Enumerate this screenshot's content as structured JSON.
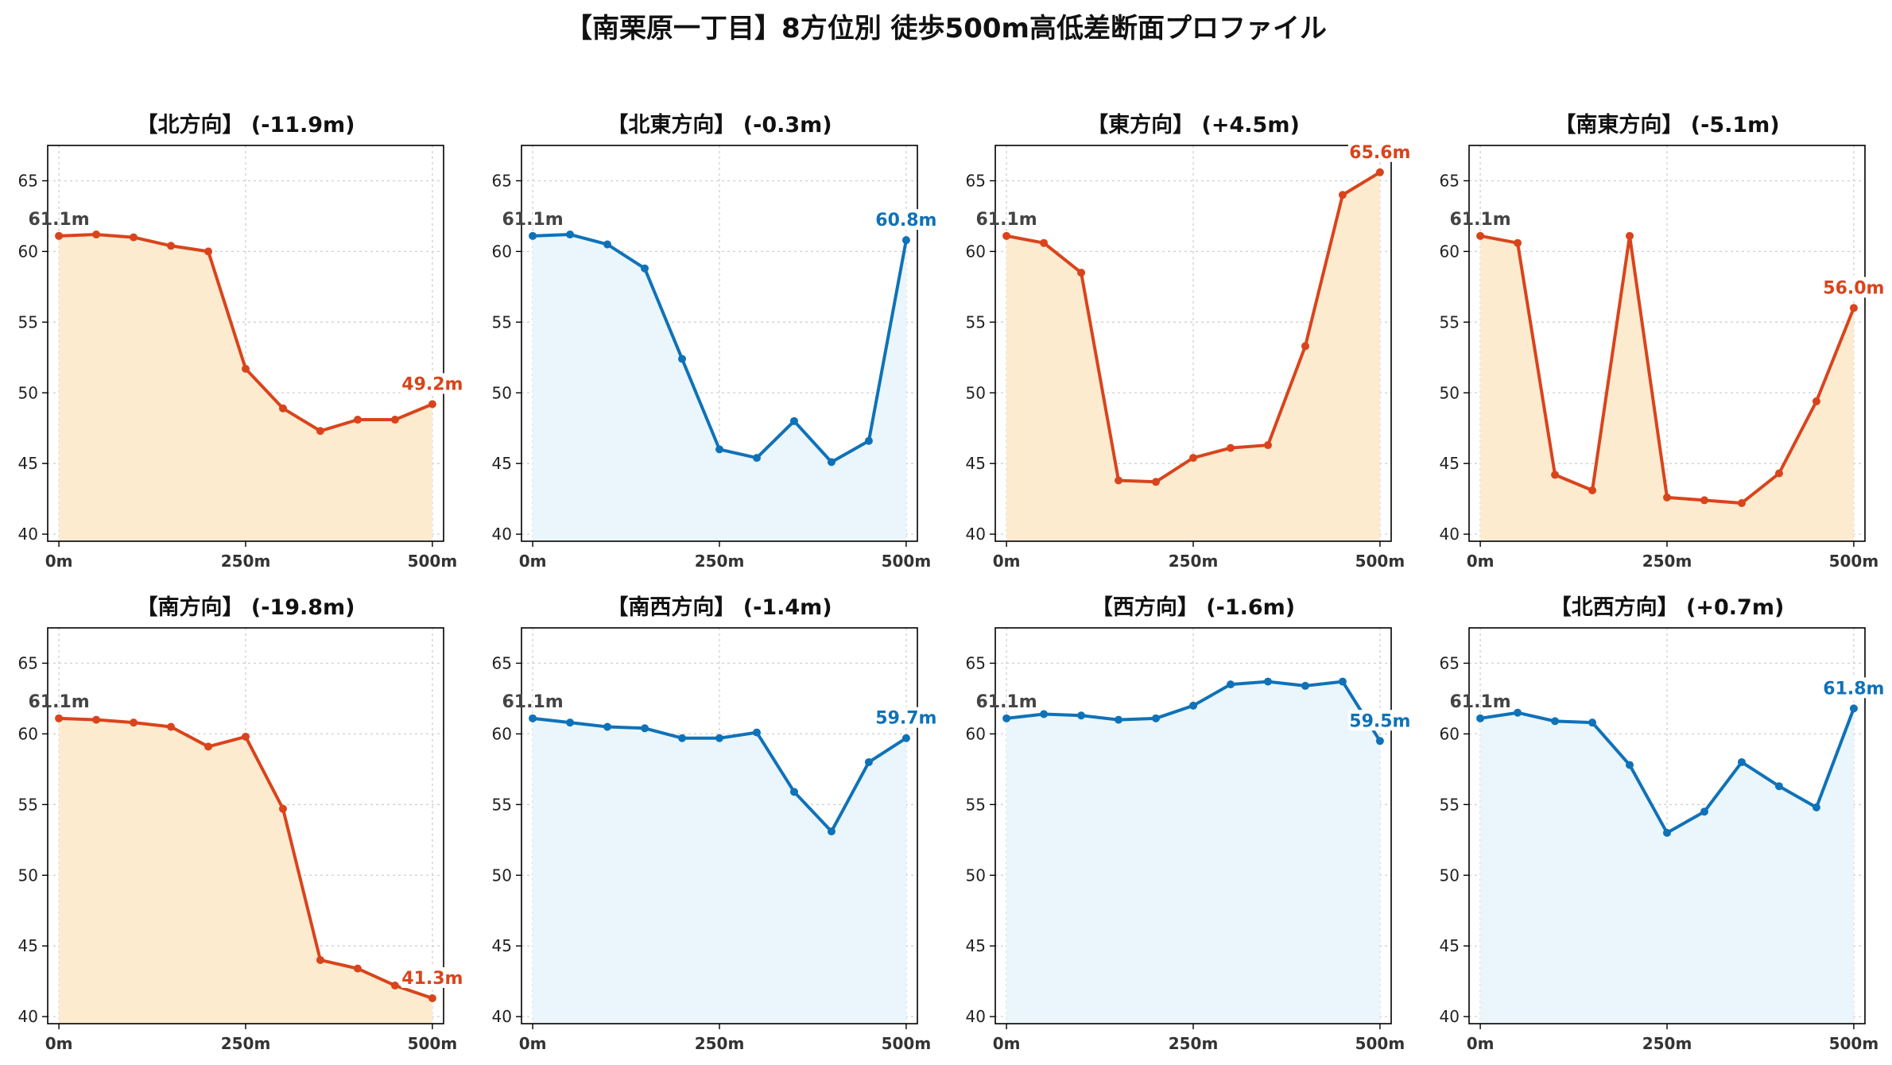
{
  "title": "【南栗原一丁目】8方位別 徒歩500m高低差断面プロファイル",
  "colors": {
    "up": "#d9441c",
    "down": "#0f72b8",
    "up_fill": "#fdebd0",
    "down_fill": "#eaf6fb",
    "start_label": "#444444"
  },
  "chart_data": [
    {
      "type": "area",
      "title": "【北方向】 (-11.9m)",
      "series": "up",
      "x": [
        0,
        50,
        100,
        150,
        200,
        250,
        300,
        350,
        400,
        450,
        500
      ],
      "y": [
        61.1,
        61.2,
        61.0,
        60.4,
        60.0,
        51.7,
        48.9,
        47.3,
        48.1,
        48.1,
        49.2
      ],
      "start_label": "61.1m",
      "end_label": "49.2m",
      "xticks": [
        "0m",
        "250m",
        "500m"
      ],
      "yticks": [
        40,
        45,
        50,
        55,
        60,
        65
      ],
      "ylim": [
        39.5,
        67.5
      ],
      "xlim": [
        -15,
        515
      ],
      "grid": true
    },
    {
      "type": "area",
      "title": "【北東方向】 (-0.3m)",
      "series": "down",
      "x": [
        0,
        50,
        100,
        150,
        200,
        250,
        300,
        350,
        400,
        450,
        500
      ],
      "y": [
        61.1,
        61.2,
        60.5,
        58.8,
        52.4,
        46.0,
        45.4,
        48.0,
        45.1,
        46.6,
        60.8
      ],
      "start_label": "61.1m",
      "end_label": "60.8m",
      "xticks": [
        "0m",
        "250m",
        "500m"
      ],
      "yticks": [
        40,
        45,
        50,
        55,
        60,
        65
      ],
      "ylim": [
        39.5,
        67.5
      ],
      "xlim": [
        -15,
        515
      ],
      "grid": true
    },
    {
      "type": "area",
      "title": "【東方向】 (+4.5m)",
      "series": "up",
      "x": [
        0,
        50,
        100,
        150,
        200,
        250,
        300,
        350,
        400,
        450,
        500
      ],
      "y": [
        61.1,
        60.6,
        58.5,
        43.8,
        43.7,
        45.4,
        46.1,
        46.3,
        53.3,
        64.0,
        65.6
      ],
      "start_label": "61.1m",
      "end_label": "65.6m",
      "xticks": [
        "0m",
        "250m",
        "500m"
      ],
      "yticks": [
        40,
        45,
        50,
        55,
        60,
        65
      ],
      "ylim": [
        39.5,
        67.5
      ],
      "xlim": [
        -15,
        515
      ],
      "grid": true
    },
    {
      "type": "area",
      "title": "【南東方向】 (-5.1m)",
      "series": "up",
      "x": [
        0,
        50,
        100,
        150,
        200,
        250,
        300,
        350,
        400,
        450,
        500
      ],
      "y": [
        61.1,
        60.6,
        44.2,
        43.1,
        61.1,
        42.6,
        42.4,
        42.2,
        44.3,
        49.4,
        56.0
      ],
      "start_label": "61.1m",
      "end_label": "56.0m",
      "xticks": [
        "0m",
        "250m",
        "500m"
      ],
      "yticks": [
        40,
        45,
        50,
        55,
        60,
        65
      ],
      "ylim": [
        39.5,
        67.5
      ],
      "xlim": [
        -15,
        515
      ],
      "grid": true
    },
    {
      "type": "area",
      "title": "【南方向】 (-19.8m)",
      "series": "up",
      "x": [
        0,
        50,
        100,
        150,
        200,
        250,
        300,
        350,
        400,
        450,
        500
      ],
      "y": [
        61.1,
        61.0,
        60.8,
        60.5,
        59.1,
        59.8,
        54.7,
        44.0,
        43.4,
        42.2,
        41.3
      ],
      "start_label": "61.1m",
      "end_label": "41.3m",
      "xticks": [
        "0m",
        "250m",
        "500m"
      ],
      "yticks": [
        40,
        45,
        50,
        55,
        60,
        65
      ],
      "ylim": [
        39.5,
        67.5
      ],
      "xlim": [
        -15,
        515
      ],
      "grid": true
    },
    {
      "type": "area",
      "title": "【南西方向】 (-1.4m)",
      "series": "down",
      "x": [
        0,
        50,
        100,
        150,
        200,
        250,
        300,
        350,
        400,
        450,
        500
      ],
      "y": [
        61.1,
        60.8,
        60.5,
        60.4,
        59.7,
        59.7,
        60.1,
        55.9,
        53.1,
        58.0,
        59.7
      ],
      "start_label": "61.1m",
      "end_label": "59.7m",
      "xticks": [
        "0m",
        "250m",
        "500m"
      ],
      "yticks": [
        40,
        45,
        50,
        55,
        60,
        65
      ],
      "ylim": [
        39.5,
        67.5
      ],
      "xlim": [
        -15,
        515
      ],
      "grid": true
    },
    {
      "type": "area",
      "title": "【西方向】 (-1.6m)",
      "series": "down",
      "x": [
        0,
        50,
        100,
        150,
        200,
        250,
        300,
        350,
        400,
        450,
        500
      ],
      "y": [
        61.1,
        61.4,
        61.3,
        61.0,
        61.1,
        62.0,
        63.5,
        63.7,
        63.4,
        63.7,
        59.5
      ],
      "start_label": "61.1m",
      "end_label": "59.5m",
      "xticks": [
        "0m",
        "250m",
        "500m"
      ],
      "yticks": [
        40,
        45,
        50,
        55,
        60,
        65
      ],
      "ylim": [
        39.5,
        67.5
      ],
      "xlim": [
        -15,
        515
      ],
      "grid": true
    },
    {
      "type": "area",
      "title": "【北西方向】 (+0.7m)",
      "series": "down",
      "x": [
        0,
        50,
        100,
        150,
        200,
        250,
        300,
        350,
        400,
        450,
        500
      ],
      "y": [
        61.1,
        61.5,
        60.9,
        60.8,
        57.8,
        53.0,
        54.5,
        58.0,
        56.3,
        54.8,
        61.8
      ],
      "start_label": "61.1m",
      "end_label": "61.8m",
      "xticks": [
        "0m",
        "250m",
        "500m"
      ],
      "yticks": [
        40,
        45,
        50,
        55,
        60,
        65
      ],
      "ylim": [
        39.5,
        67.5
      ],
      "xlim": [
        -15,
        515
      ],
      "grid": true
    }
  ]
}
